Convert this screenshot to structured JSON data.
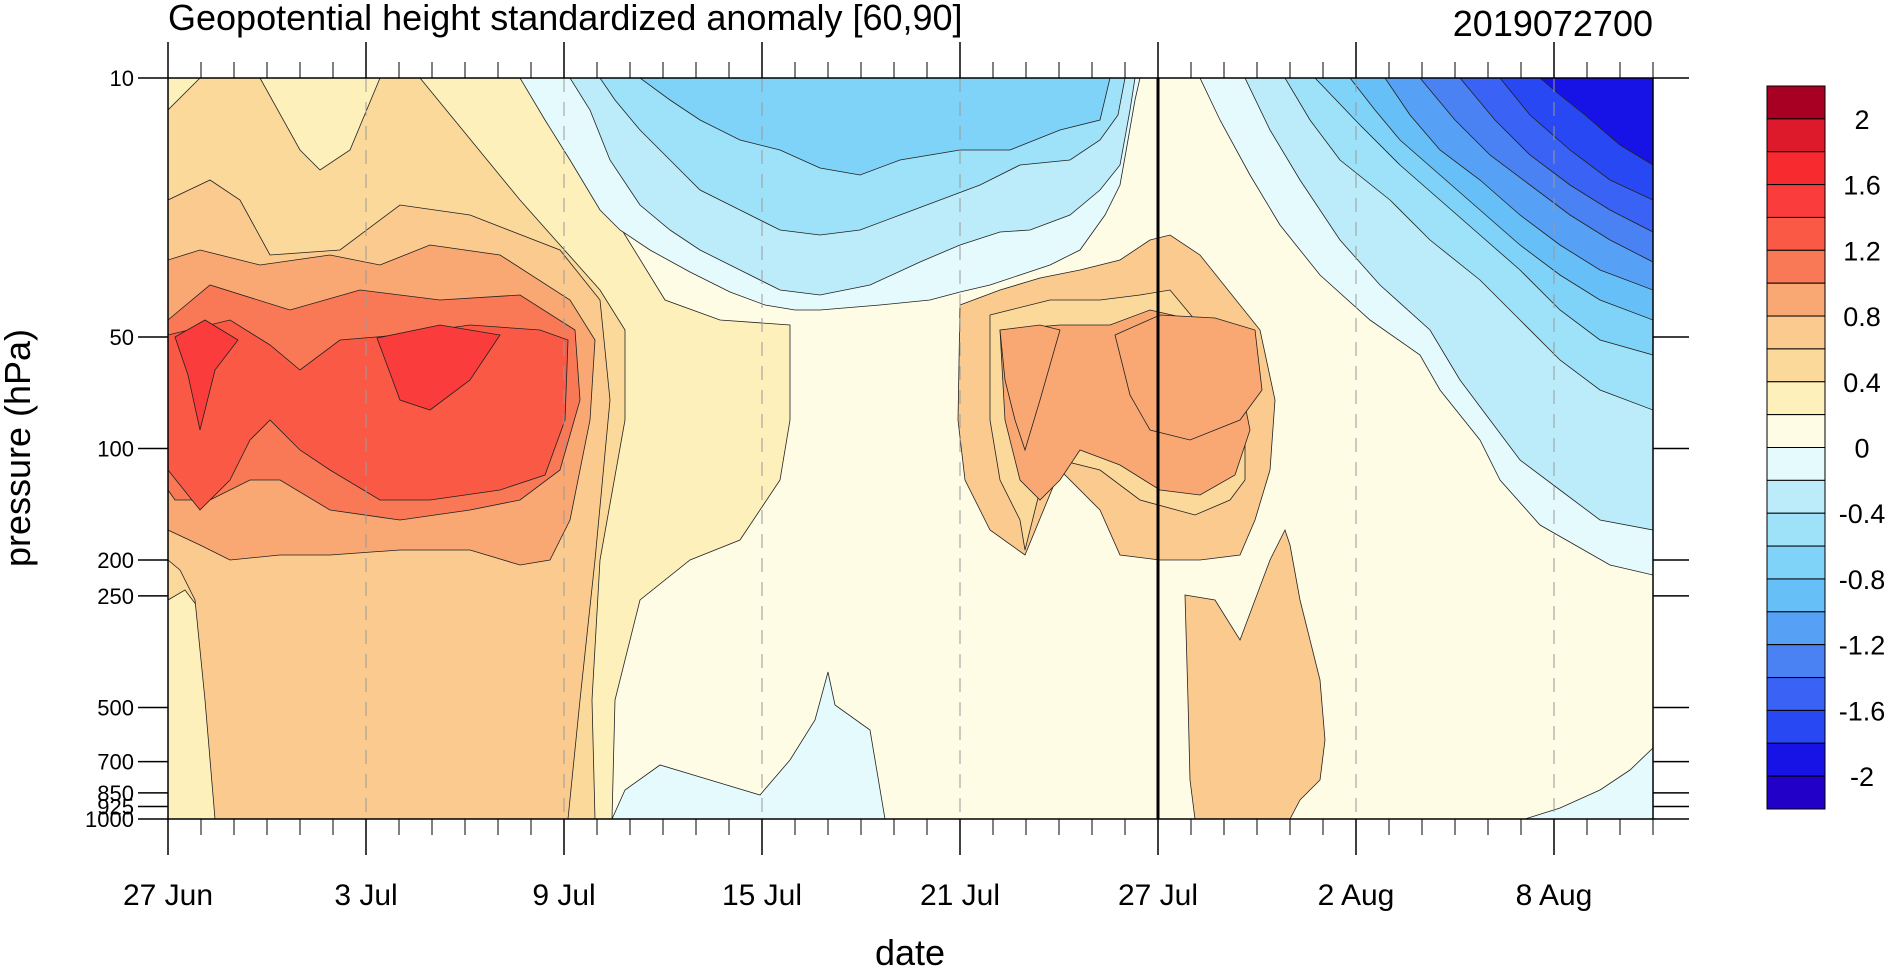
{
  "chart_data": {
    "type": "heatmap",
    "title": "Geopotential height standardized anomaly [60,90]",
    "date_label": "2019072700",
    "xlabel": "date",
    "ylabel": "pressure (hPa)",
    "x_ticks": [
      "27 Jun",
      "3 Jul",
      "9 Jul",
      "15 Jul",
      "21 Jul",
      "27 Jul",
      "2 Aug",
      "8 Aug"
    ],
    "y_ticks": [
      "10",
      "50",
      "100",
      "200",
      "250",
      "500",
      "700",
      "850",
      "925",
      "1000"
    ],
    "y_scale": "log",
    "y_range": [
      1000,
      10
    ],
    "x_range": [
      "2019-06-27",
      "2019-08-11"
    ],
    "current_date_marker": "27 Jul",
    "colorbar": {
      "ticks": [
        "2",
        "1.6",
        "1.2",
        "0.8",
        "0.4",
        "0",
        "-0.4",
        "-0.8",
        "-1.2",
        "-1.6",
        "-2"
      ],
      "levels": [
        -2.2,
        -2.0,
        -1.8,
        -1.6,
        -1.4,
        -1.2,
        -1.0,
        -0.8,
        -0.6,
        -0.4,
        -0.2,
        0,
        0.2,
        0.4,
        0.6,
        0.8,
        1.0,
        1.2,
        1.4,
        1.6,
        1.8,
        2.0,
        2.2
      ],
      "colors": [
        "#2300c8",
        "#1713e6",
        "#2748f2",
        "#3a62f5",
        "#4a82f4",
        "#56a1f5",
        "#66bff7",
        "#7fd2f8",
        "#9de2f9",
        "#bcecfa",
        "#e4fafd",
        "#fffce5",
        "#fdf0bb",
        "#fbd99b",
        "#fbca8e",
        "#f9a873",
        "#f97856",
        "#fa5a45",
        "#fa3c3c",
        "#f72a2f",
        "#dc1a2c",
        "#a80022"
      ]
    },
    "approximate_fields": [
      {
        "description": "Positive anomaly core",
        "date_range": [
          "27 Jun",
          "9 Jul"
        ],
        "pressure_range": [
          150,
          45
        ],
        "peak_value": 1.8
      },
      {
        "description": "Positive anomaly core",
        "date_range": [
          "21 Jul",
          "31 Jul"
        ],
        "pressure_range": [
          120,
          45
        ],
        "peak_value": 1.1
      },
      {
        "description": "Negative anomaly",
        "date_range": [
          "10 Jul",
          "26 Jul"
        ],
        "pressure_range": [
          40,
          10
        ],
        "peak_value": -0.6
      },
      {
        "description": "Strong negative anomaly",
        "date_range": [
          "28 Jul",
          "11 Aug"
        ],
        "pressure_range": [
          200,
          10
        ],
        "peak_value": -2.2
      },
      {
        "description": "Weak negative near surface",
        "date_range": [
          "11 Jul",
          "19 Jul"
        ],
        "pressure_range": [
          1000,
          700
        ],
        "peak_value": -0.2
      }
    ]
  }
}
